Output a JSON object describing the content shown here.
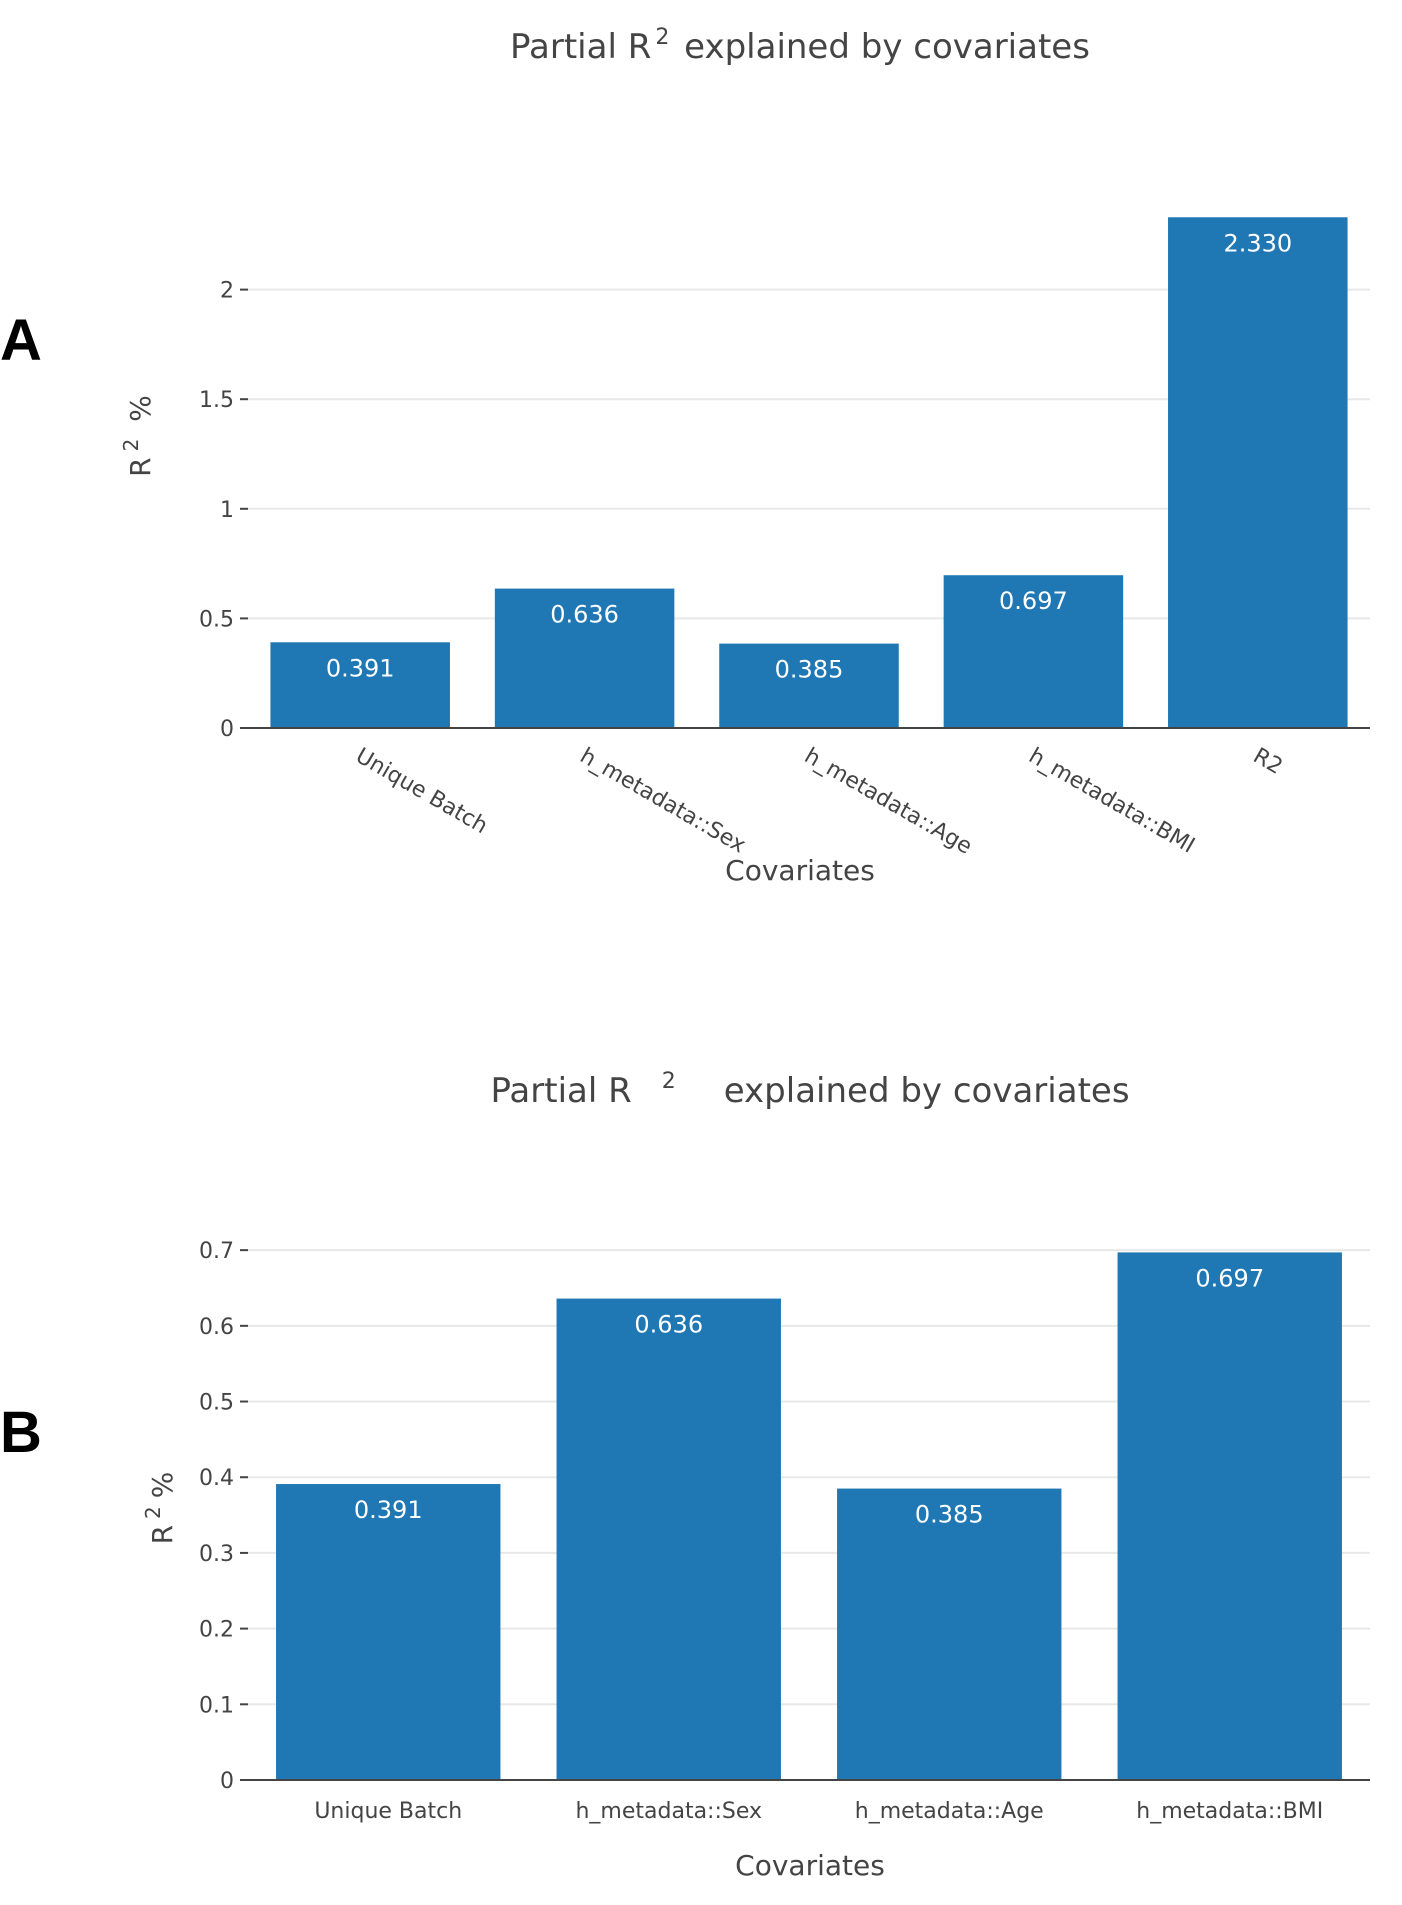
{
  "chart_data": [
    {
      "panel_label": "A",
      "type": "bar",
      "title_pre": "Partial R",
      "title_sup": "2",
      "title_post": " explained by covariates",
      "xlabel": "Covariates",
      "ylabel_pre": "R",
      "ylabel_sup": "2",
      "ylabel_post": " %",
      "categories": [
        "Unique Batch",
        "h_metadata::Sex",
        "h_metadata::Age",
        "h_metadata::BMI",
        "R2"
      ],
      "values": [
        0.391,
        0.636,
        0.385,
        0.697,
        2.33
      ],
      "data_labels": [
        "0.391",
        "0.636",
        "0.385",
        "0.697",
        "2.330"
      ],
      "ylim": [
        0,
        2.5
      ],
      "yticks": [
        0,
        0.5,
        1,
        1.5,
        2
      ],
      "ytick_labels": [
        "0",
        "0.5",
        "1",
        "1.5",
        "2"
      ],
      "x_tick_rotation": "rotated",
      "grid": true,
      "bar_color": "#1f77b4"
    },
    {
      "panel_label": "B",
      "type": "bar",
      "title_pre": "Partial R",
      "title_sup": "2",
      "title_post": "explained by covariates",
      "xlabel": "Covariates",
      "ylabel_pre": "R",
      "ylabel_sup": "2",
      "ylabel_post": "%",
      "categories": [
        "Unique Batch",
        "h_metadata::Sex",
        "h_metadata::Age",
        "h_metadata::BMI"
      ],
      "values": [
        0.391,
        0.636,
        0.385,
        0.697
      ],
      "data_labels": [
        "0.391",
        "0.636",
        "0.385",
        "0.697"
      ],
      "ylim": [
        0,
        0.72
      ],
      "yticks": [
        0,
        0.1,
        0.2,
        0.3,
        0.4,
        0.5,
        0.6,
        0.7
      ],
      "ytick_labels": [
        "0",
        "0.1",
        "0.2",
        "0.3",
        "0.4",
        "0.5",
        "0.6",
        "0.7"
      ],
      "x_tick_rotation": "horizontal",
      "grid": true,
      "bar_color": "#1f77b4"
    }
  ]
}
